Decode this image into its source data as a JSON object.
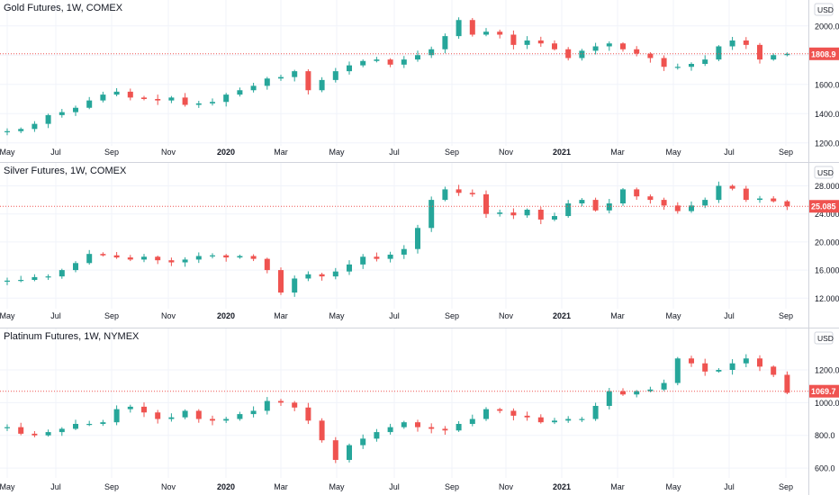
{
  "colors": {
    "up": "#26a69a",
    "down": "#ef5350",
    "grid": "#f0f3fa",
    "axis_text": "#131722",
    "last_price_line": "#ef5350"
  },
  "x_axis_labels": [
    "May",
    "Jul",
    "Sep",
    "Nov",
    "2020",
    "Mar",
    "May",
    "Jul",
    "Sep",
    "Nov",
    "2021",
    "Mar",
    "May",
    "Jul",
    "Sep"
  ],
  "x_axis_bold": [
    "2020",
    "2021"
  ],
  "chart_data": [
    {
      "type": "candlestick",
      "title": "Gold Futures, 1W, COMEX",
      "currency": "USD",
      "price_label": "1808.9",
      "last_price": 1808.9,
      "y_ticks": [
        "2000.0",
        "1800.0",
        "1600.0",
        "1400.0",
        "1200.0"
      ],
      "y_tick_values": [
        2000,
        1800,
        1600,
        1400,
        1200
      ],
      "ylim": [
        1180,
        2140
      ],
      "anchors": [
        1280,
        1295,
        1330,
        1390,
        1410,
        1440,
        1490,
        1530,
        1550,
        1510,
        1500,
        1490,
        1510,
        1460,
        1470,
        1480,
        1530,
        1560,
        1590,
        1640,
        1650,
        1690,
        1560,
        1630,
        1690,
        1730,
        1760,
        1770,
        1735,
        1770,
        1800,
        1840,
        1930,
        2040,
        1940,
        1960,
        1940,
        1870,
        1900,
        1880,
        1840,
        1780,
        1830,
        1860,
        1880,
        1840,
        1810,
        1780,
        1720,
        1720,
        1740,
        1770,
        1860,
        1900,
        1870,
        1770,
        1800,
        1808.9
      ]
    },
    {
      "type": "candlestick",
      "title": "Silver Futures, 1W, COMEX",
      "currency": "USD",
      "price_label": "25.085",
      "last_price": 25.085,
      "y_ticks": [
        "28.000",
        "24.000",
        "20.000",
        "16.000",
        "12.000"
      ],
      "y_tick_values": [
        28,
        24,
        20,
        16,
        12
      ],
      "ylim": [
        10.5,
        30.5
      ],
      "anchors": [
        14.5,
        14.6,
        15.0,
        15.1,
        16.0,
        17.0,
        18.3,
        18.1,
        17.8,
        17.5,
        17.9,
        17.4,
        17.1,
        17.5,
        18.0,
        18.1,
        17.8,
        18.0,
        17.6,
        16.0,
        12.8,
        14.8,
        15.4,
        15.1,
        15.8,
        16.8,
        17.9,
        17.6,
        18.2,
        19.0,
        22.0,
        26.0,
        27.5,
        27.0,
        26.8,
        24.0,
        24.2,
        23.8,
        24.6,
        23.2,
        23.7,
        25.5,
        26.0,
        24.5,
        25.5,
        27.5,
        26.5,
        26.0,
        25.2,
        24.4,
        25.2,
        26.0,
        28.0,
        27.6,
        26.0,
        26.2,
        25.8,
        25.085
      ]
    },
    {
      "type": "candlestick",
      "title": "Platinum Futures, 1W, NYMEX",
      "currency": "USD",
      "price_label": "1069.7",
      "last_price": 1069.7,
      "y_ticks": [
        "1200.0",
        "1000.0",
        "800.0",
        "600.0"
      ],
      "y_tick_values": [
        1200,
        1000,
        800,
        600
      ],
      "ylim": [
        540,
        1420
      ],
      "anchors": [
        850,
        810,
        800,
        820,
        840,
        870,
        870,
        880,
        960,
        975,
        940,
        900,
        910,
        950,
        900,
        890,
        900,
        930,
        950,
        1010,
        1000,
        970,
        890,
        770,
        650,
        740,
        780,
        820,
        850,
        880,
        850,
        840,
        830,
        870,
        900,
        960,
        950,
        920,
        910,
        880,
        890,
        900,
        900,
        980,
        1070,
        1050,
        1070,
        1080,
        1120,
        1270,
        1240,
        1190,
        1200,
        1240,
        1270,
        1220,
        1170,
        1060,
        1100,
        1069.7
      ]
    }
  ]
}
